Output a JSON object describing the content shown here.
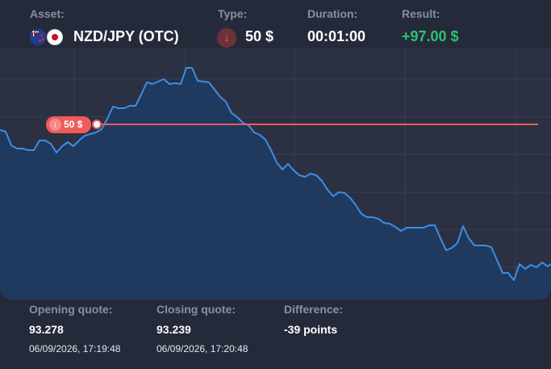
{
  "header": {
    "asset_label": "Asset:",
    "asset_value": "NZD/JPY (OTC)",
    "type_label": "Type:",
    "type_value": "50 $",
    "type_direction_icon": "arrow-down-icon",
    "duration_label": "Duration:",
    "duration_value": "00:01:00",
    "result_label": "Result:",
    "result_value": "+97.00 $"
  },
  "chart": {
    "marker_label": "50 $",
    "colors": {
      "line": "#3b8ee5",
      "area": "#1f3a5e",
      "strike_line": "#ef5a5a",
      "result_positive": "#2bc36f"
    },
    "grid": true,
    "area_fill": true
  },
  "footer": {
    "opening_label": "Opening quote:",
    "opening_value": "93.278",
    "opening_time": "06/09/2026, 17:19:48",
    "closing_label": "Closing quote:",
    "closing_value": "93.239",
    "closing_time": "06/09/2026, 17:20:48",
    "difference_label": "Difference:",
    "difference_value": "-39 points"
  }
}
